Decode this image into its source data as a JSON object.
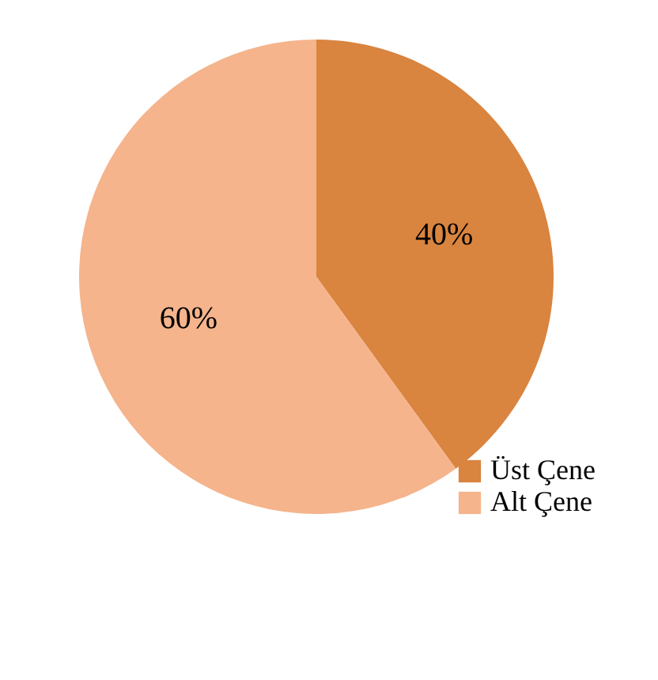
{
  "chart_data": {
    "type": "pie",
    "categories": [
      "Üst Çene",
      "Alt Çene"
    ],
    "values": [
      40,
      60
    ],
    "value_labels": [
      "40%",
      "60%"
    ],
    "colors": [
      "#d9843f",
      "#f5b48c"
    ],
    "legend": "bottom right"
  }
}
